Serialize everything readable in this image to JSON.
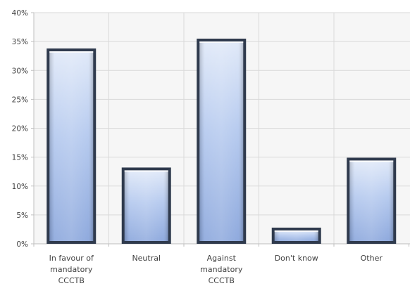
{
  "chart_data": {
    "type": "bar",
    "title": "",
    "xlabel": "",
    "ylabel": "",
    "categories": [
      [
        "In favour of",
        "mandatory",
        "CCCTB"
      ],
      [
        "Neutral"
      ],
      [
        "Against",
        "mandatory",
        "CCCTB"
      ],
      [
        "Don't know"
      ],
      [
        "Other"
      ]
    ],
    "values": [
      33.8,
      13.2,
      35.5,
      2.8,
      14.9
    ],
    "ylim": [
      0,
      40
    ],
    "yticks": [
      0,
      5,
      10,
      15,
      20,
      25,
      30,
      35,
      40
    ],
    "ytick_labels": [
      "0%",
      "5%",
      "10%",
      "15%",
      "20%",
      "25%",
      "30%",
      "35%",
      "40%"
    ],
    "grid": true,
    "legend": "none",
    "colors": {
      "bar_top": "#dfe8f8",
      "bar_mid": "#b3c8ee",
      "bar_bottom": "#8aa6dc",
      "bar_edge": "#2f3a4d",
      "grid": "#d9d9d9",
      "plot_bg": "#f6f6f6"
    }
  }
}
